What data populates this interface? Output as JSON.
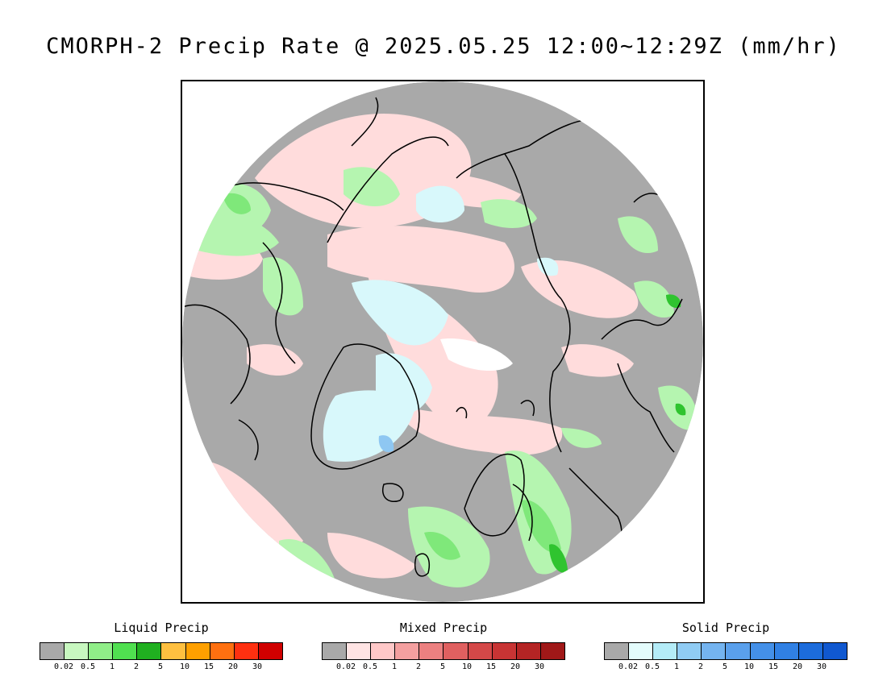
{
  "title": "CMORPH-2 Precip Rate @ 2025.05.25 12:00~12:29Z (mm/hr)",
  "map": {
    "colors": {
      "no_precip": "#a9a9a9",
      "light_mixed": "#ffdcdc",
      "light_liquid": "#b5f5b0",
      "medium_liquid": "#7fe87a",
      "heavy_liquid": "#2fc42f",
      "light_solid": "#d8f8fb",
      "medium_solid": "#8ec7f2",
      "outside": "#ffffff",
      "coastline": "#000000"
    }
  },
  "legends": [
    {
      "title": "Liquid Precip",
      "colors": [
        "#a9a9a9",
        "#c8f8c0",
        "#90ee88",
        "#50e050",
        "#20b020",
        "#ffc040",
        "#ffa000",
        "#ff7010",
        "#ff3010",
        "#d00000"
      ],
      "ticks": [
        "0.02",
        "0.5",
        "1",
        "2",
        "5",
        "10",
        "15",
        "20",
        "30"
      ]
    },
    {
      "title": "Mixed Precip",
      "colors": [
        "#a9a9a9",
        "#ffe4e4",
        "#ffc8c8",
        "#f4a0a0",
        "#ec8080",
        "#e06060",
        "#d44848",
        "#c83434",
        "#b42424",
        "#a01818"
      ],
      "ticks": [
        "0.02",
        "0.5",
        "1",
        "2",
        "5",
        "10",
        "15",
        "20",
        "30"
      ]
    },
    {
      "title": "Solid Precip",
      "colors": [
        "#a9a9a9",
        "#e4fcfc",
        "#b4ecf8",
        "#90ccf4",
        "#74b4f0",
        "#5aa0ec",
        "#4490e8",
        "#3080e4",
        "#1c6cdc",
        "#1058d0"
      ],
      "ticks": [
        "0.02",
        "0.5",
        "1",
        "2",
        "5",
        "10",
        "15",
        "20",
        "30"
      ]
    }
  ]
}
